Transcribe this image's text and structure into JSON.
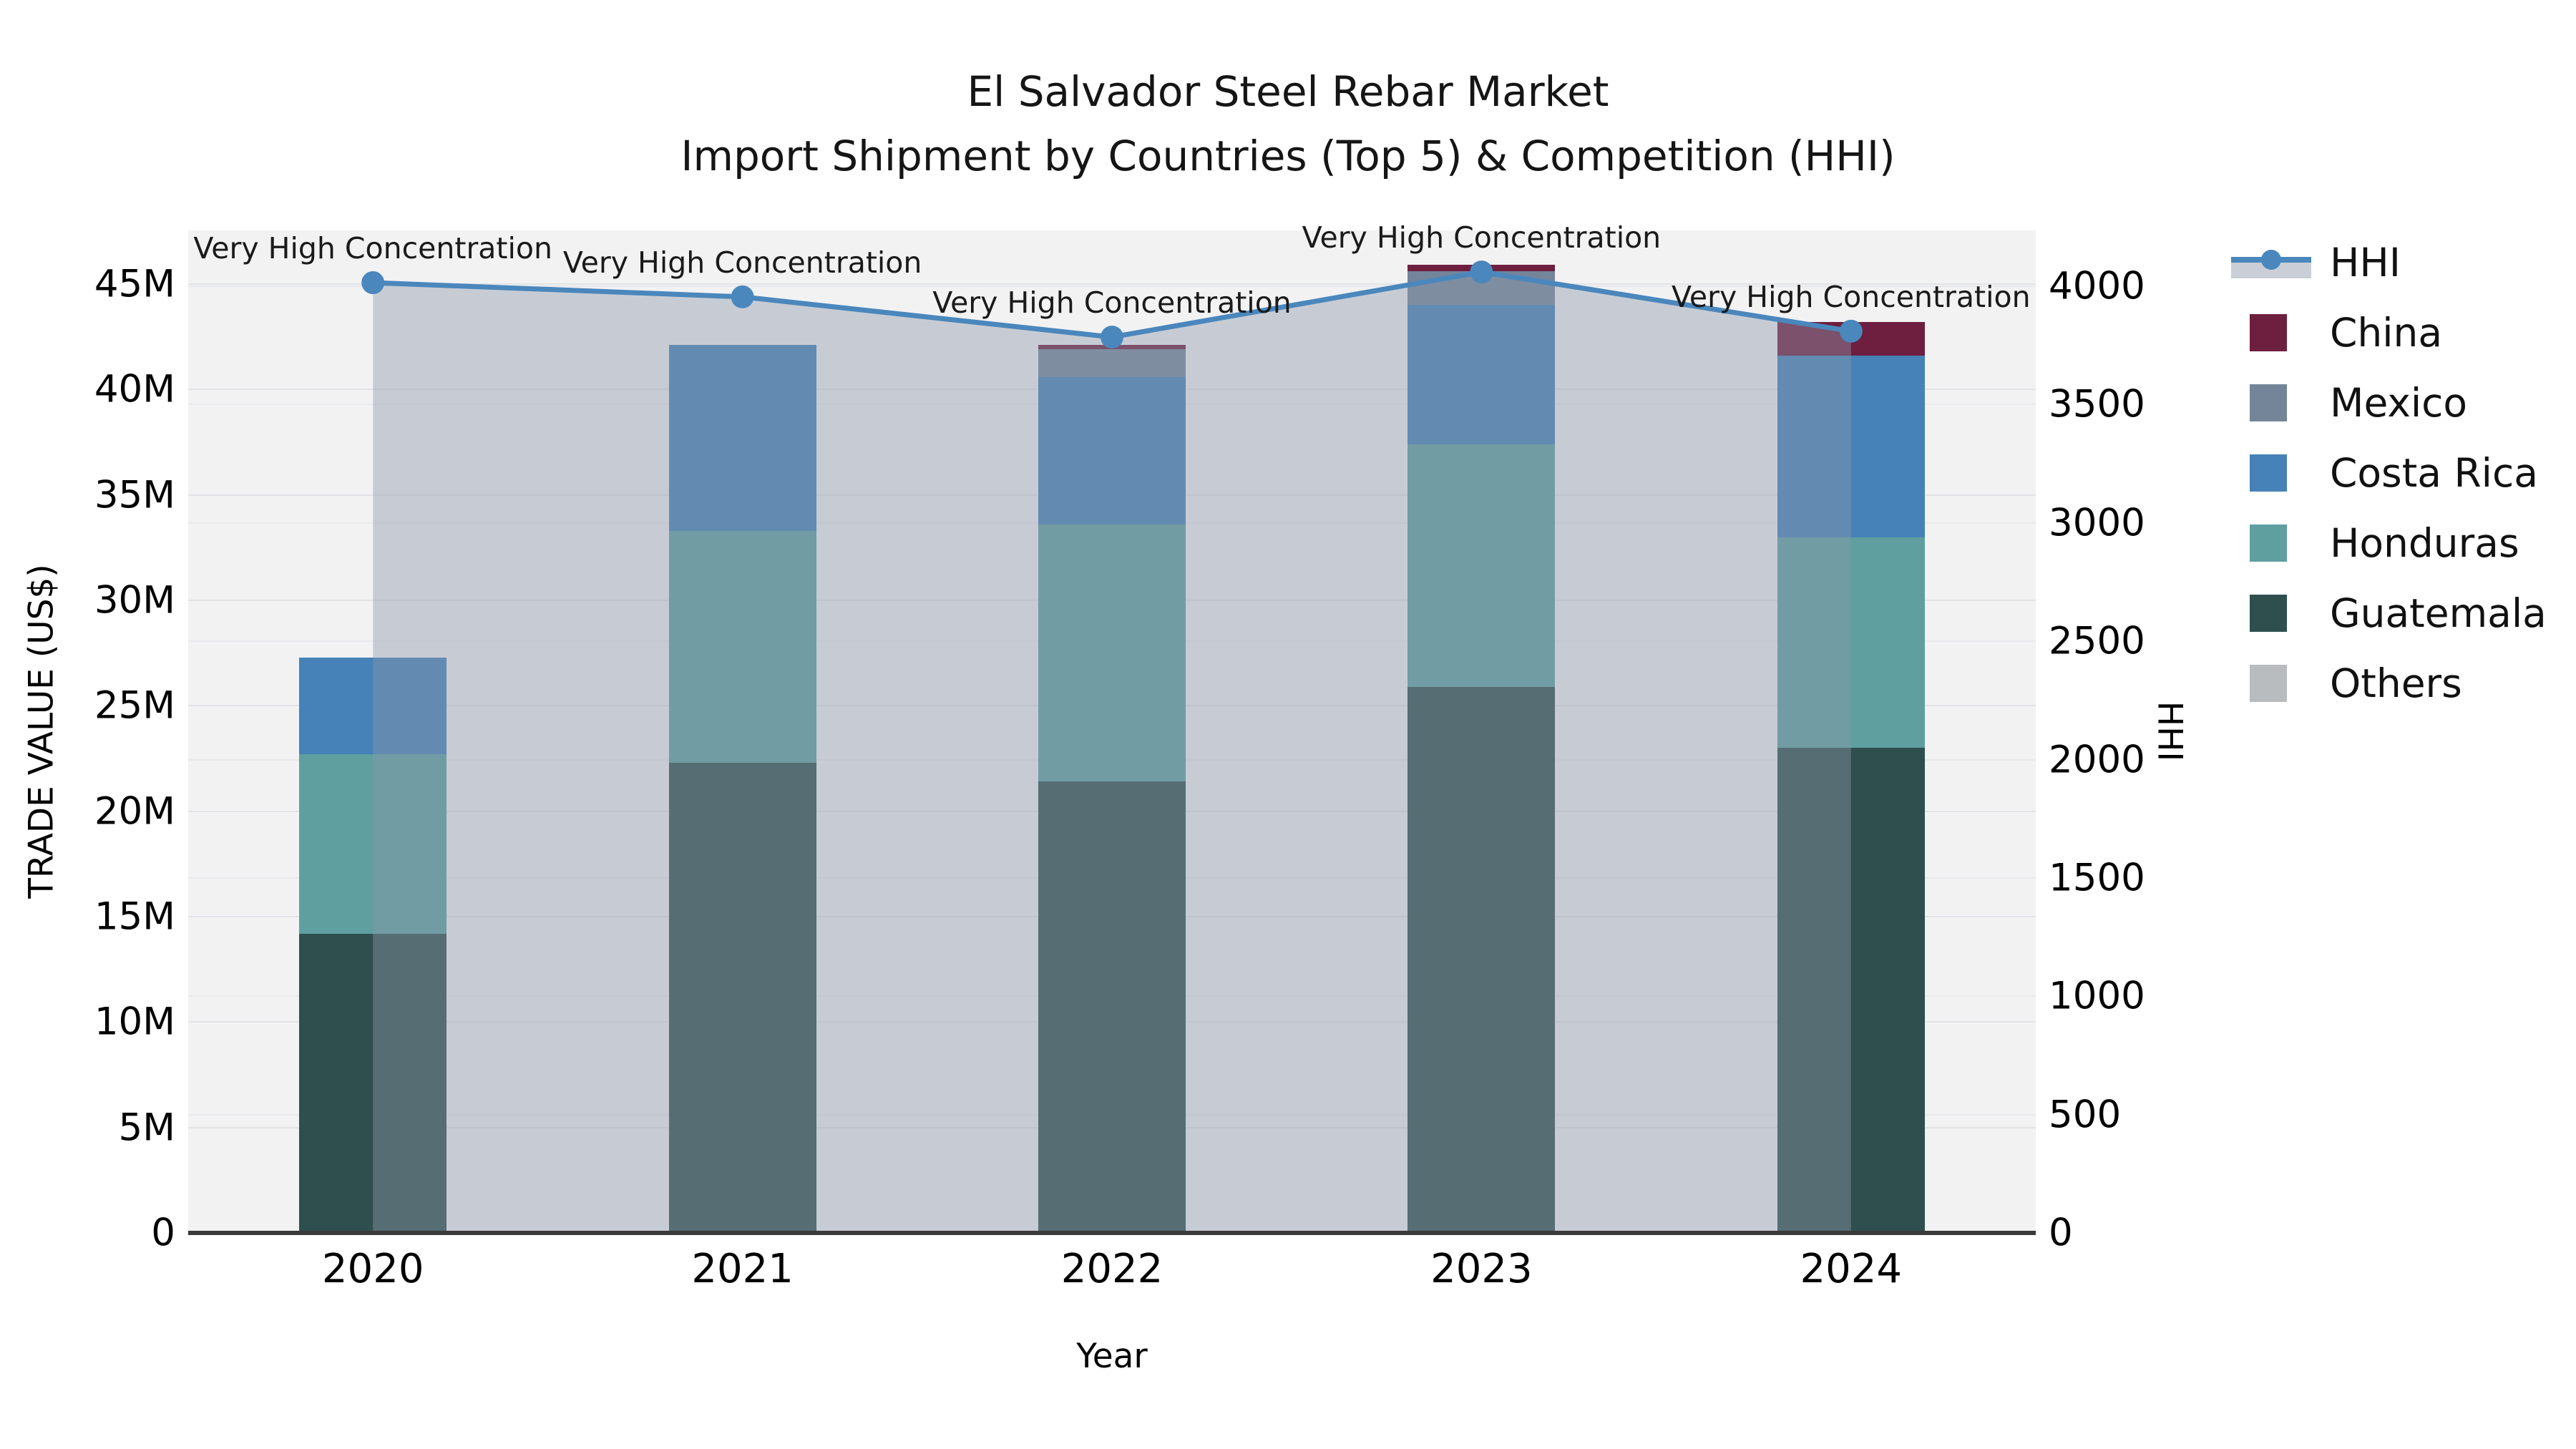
{
  "title": {
    "line1": "El Salvador Steel Rebar Market",
    "line2": "Import Shipment by Countries (Top 5) & Competition (HHI)"
  },
  "axes": {
    "x_label": "Year",
    "y_left_label": "TRADE VALUE (US$)",
    "y_right_label": "HHI",
    "y_left_ticks": [
      {
        "value": 0,
        "label": "0"
      },
      {
        "value": 5,
        "label": "5M"
      },
      {
        "value": 10,
        "label": "10M"
      },
      {
        "value": 15,
        "label": "15M"
      },
      {
        "value": 20,
        "label": "20M"
      },
      {
        "value": 25,
        "label": "25M"
      },
      {
        "value": 30,
        "label": "30M"
      },
      {
        "value": 35,
        "label": "35M"
      },
      {
        "value": 40,
        "label": "40M"
      },
      {
        "value": 45,
        "label": "45M"
      }
    ],
    "y_right_ticks": [
      {
        "value": 0,
        "label": "0"
      },
      {
        "value": 500,
        "label": "500"
      },
      {
        "value": 1000,
        "label": "1000"
      },
      {
        "value": 1500,
        "label": "1500"
      },
      {
        "value": 2000,
        "label": "2000"
      },
      {
        "value": 2500,
        "label": "2500"
      },
      {
        "value": 3000,
        "label": "3000"
      },
      {
        "value": 3500,
        "label": "3500"
      },
      {
        "value": 4000,
        "label": "4000"
      }
    ]
  },
  "legend": {
    "items": [
      {
        "label": "HHI",
        "type": "line",
        "color": "#4a87bc",
        "band_color": "#c9ced7"
      },
      {
        "label": "China",
        "type": "swatch",
        "color": "#6e1e3e"
      },
      {
        "label": "Mexico",
        "type": "swatch",
        "color": "#74859a"
      },
      {
        "label": "Costa Rica",
        "type": "swatch",
        "color": "#4682b8"
      },
      {
        "label": "Honduras",
        "type": "swatch",
        "color": "#5f9fa0"
      },
      {
        "label": "Guatemala",
        "type": "swatch",
        "color": "#2f4f4f"
      },
      {
        "label": "Others",
        "type": "swatch",
        "color": "#b9bcbf"
      }
    ]
  },
  "chart_data": {
    "type": "bar",
    "subtype": "stacked-bars-with-line-overlay",
    "categories": [
      "2020",
      "2021",
      "2022",
      "2023",
      "2024"
    ],
    "bar_value_unit": "million US$",
    "left_axis_range": [
      0,
      45
    ],
    "right_axis_range": [
      0,
      4000
    ],
    "grid": true,
    "legend_position": "right",
    "series": [
      {
        "name": "Guatemala",
        "color": "#2f4f4f",
        "values": [
          14.2,
          22.3,
          21.4,
          25.9,
          23.0
        ]
      },
      {
        "name": "Honduras",
        "color": "#5f9fa0",
        "values": [
          8.5,
          11.0,
          12.2,
          11.5,
          10.0
        ]
      },
      {
        "name": "Costa Rica",
        "color": "#4682b8",
        "values": [
          4.6,
          8.8,
          7.0,
          6.6,
          8.6
        ]
      },
      {
        "name": "Mexico",
        "color": "#74859a",
        "values": [
          0,
          0,
          1.3,
          1.6,
          0
        ]
      },
      {
        "name": "China",
        "color": "#6e1e3e",
        "values": [
          0,
          0,
          0.2,
          0.3,
          1.6
        ]
      },
      {
        "name": "Others",
        "color": "#b9bcbf",
        "values": [
          0,
          0,
          0,
          0,
          0
        ]
      }
    ],
    "bar_totals": [
      27.3,
      42.1,
      42.1,
      45.9,
      43.2
    ],
    "line_series": {
      "name": "HHI",
      "axis": "right",
      "color": "#4a87bc",
      "area_fill": "rgba(140,152,170,0.42)",
      "values": [
        4015,
        3955,
        3785,
        4060,
        3810
      ]
    },
    "annotations": [
      {
        "category": "2020",
        "text": "Very High Concentration"
      },
      {
        "category": "2021",
        "text": "Very High Concentration"
      },
      {
        "category": "2022",
        "text": "Very High Concentration"
      },
      {
        "category": "2023",
        "text": "Very High Concentration"
      },
      {
        "category": "2024",
        "text": "Very High Concentration"
      }
    ]
  }
}
